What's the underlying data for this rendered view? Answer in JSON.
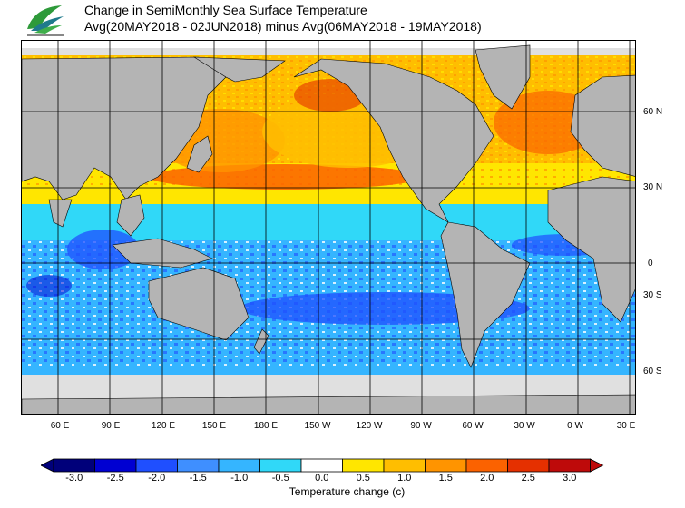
{
  "header": {
    "title_line1": "Change in SemiMonthly Sea Surface Temperature",
    "title_line2": "Avg(20MAY2018 - 02JUN2018) minus Avg(06MAY2018 - 19MAY2018)"
  },
  "map": {
    "latitude_labels": [
      "60 N",
      "30 N",
      "0",
      "30 S",
      "60 S"
    ],
    "longitude_labels": [
      "60 E",
      "90 E",
      "120 E",
      "150 E",
      "180 E",
      "150 W",
      "120 W",
      "90 W",
      "60 W",
      "30 W",
      "0 W",
      "30 E"
    ],
    "colors": {
      "land": "#b4b4b4",
      "sea_ice": "#e0e0e0",
      "border": "#000000"
    }
  },
  "colorbar": {
    "title": "Temperature change  (c)",
    "ticks": [
      "-3.0",
      "-2.5",
      "-2.0",
      "-1.5",
      "-1.0",
      "-0.5",
      "0.0",
      "0.5",
      "1.0",
      "1.5",
      "2.0",
      "2.5",
      "3.0"
    ],
    "colors": [
      "#00007a",
      "#0000d2",
      "#1f4fff",
      "#3f8fff",
      "#35b5ff",
      "#30d8f8",
      "#ffffff",
      "#ffe600",
      "#ffbe00",
      "#ff9400",
      "#fb6200",
      "#e53000",
      "#be0a0a"
    ]
  }
}
